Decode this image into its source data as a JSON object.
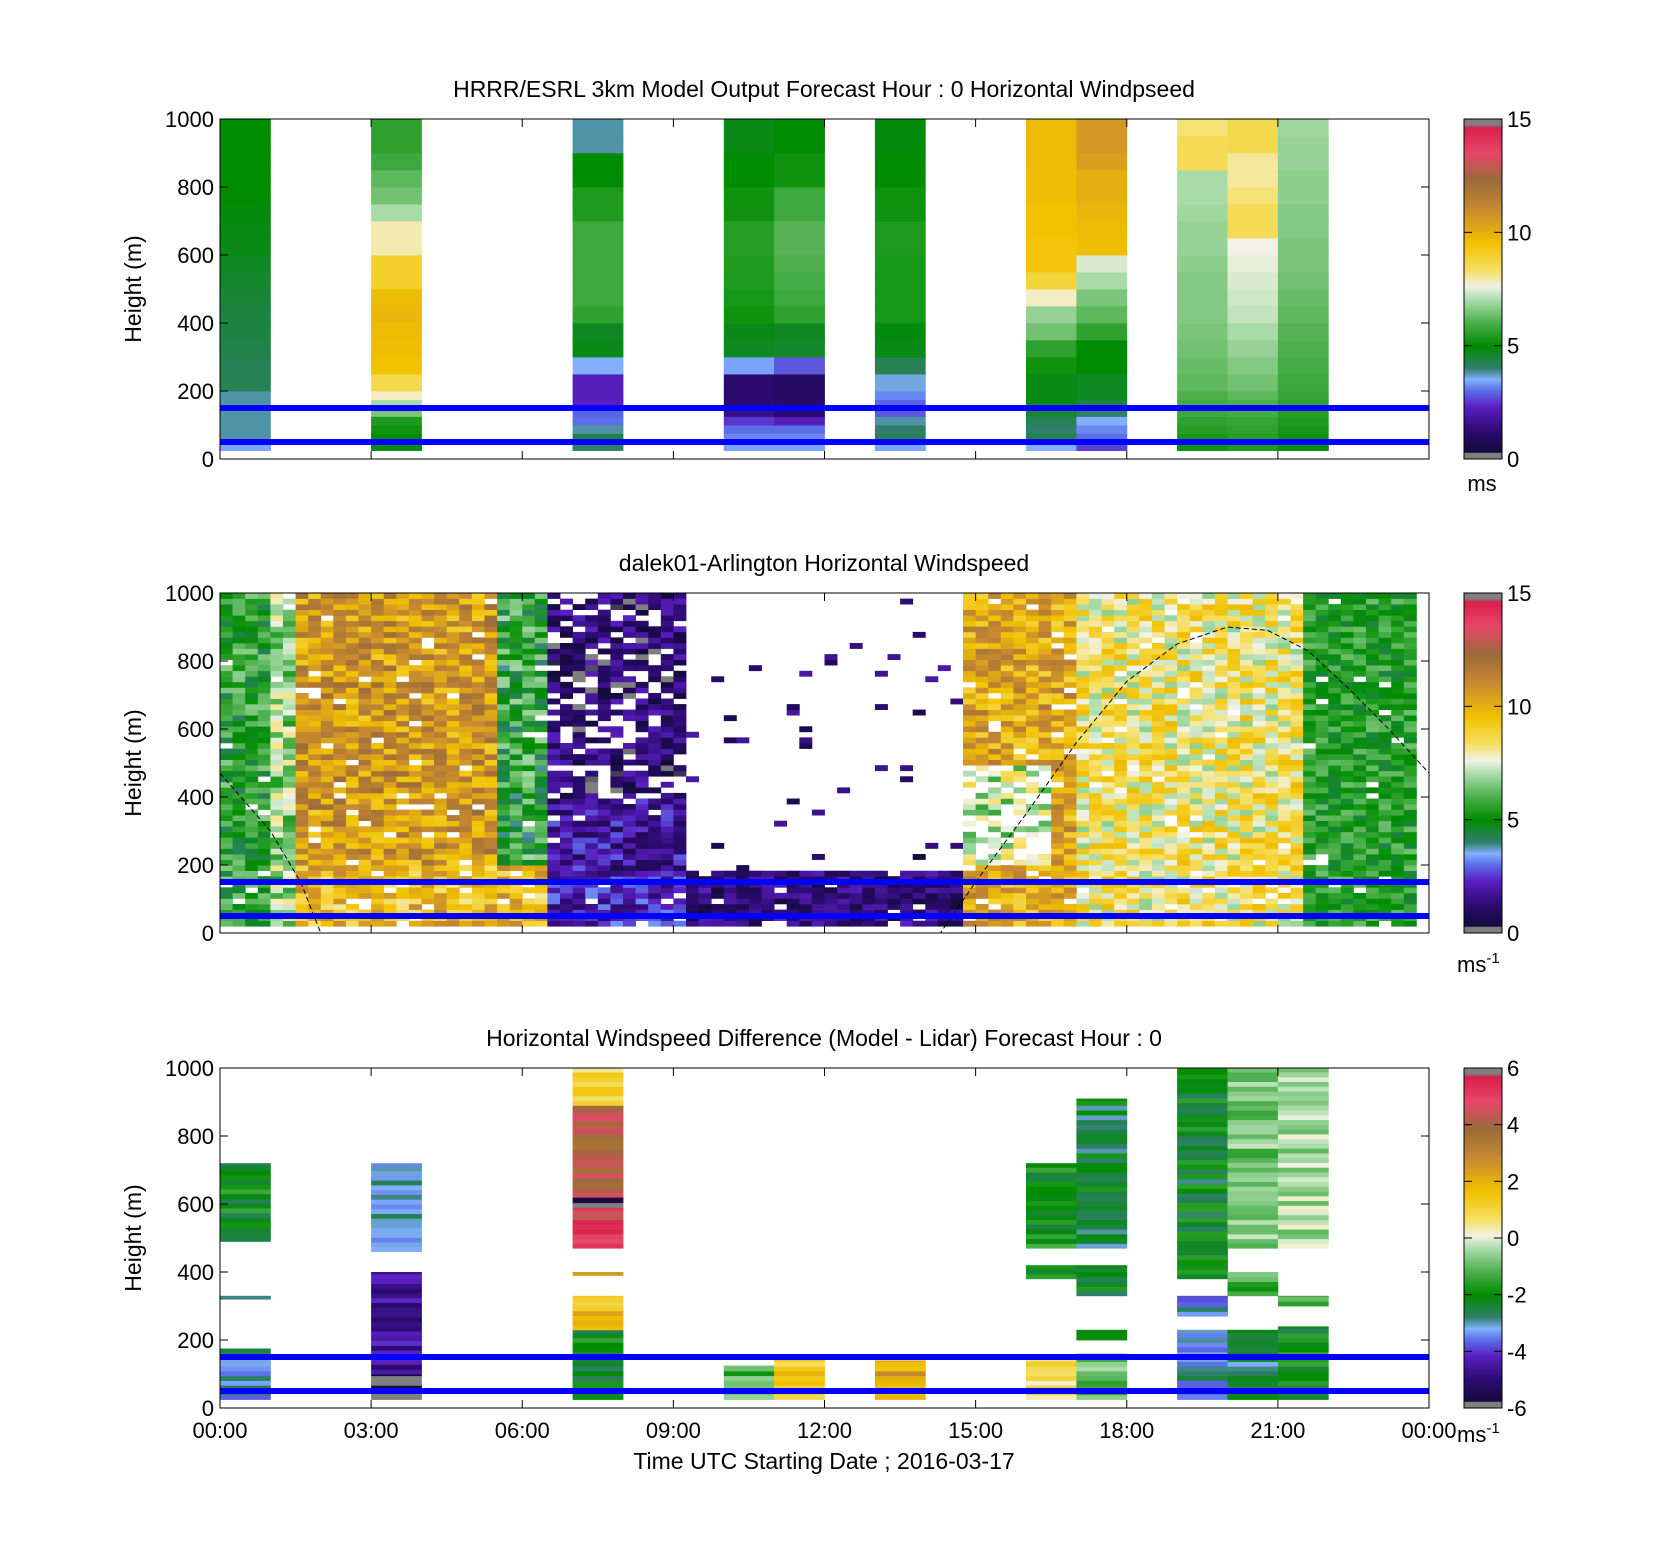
{
  "chart_data": [
    {
      "type": "heatmap",
      "title": "HRRR/ESRL 3km Model Output   Forecast Hour : 0 Horizontal Windpseed",
      "ylabel": "Height (m)",
      "xlim_hours": [
        0,
        24
      ],
      "ylim": [
        0,
        1000
      ],
      "yticks": [
        "0",
        "200",
        "400",
        "600",
        "800",
        "1000"
      ],
      "xticks": [
        "00:00",
        "03:00",
        "06:00",
        "09:00",
        "12:00",
        "15:00",
        "18:00",
        "21:00",
        "00:00"
      ],
      "colorbar": {
        "ticks": [
          "0",
          "5",
          "10",
          "15"
        ],
        "range": [
          0,
          15
        ],
        "unit": "ms"
      },
      "reference_lines_m": [
        50,
        150
      ],
      "height_levels_m": [
        25,
        50,
        75,
        100,
        125,
        150,
        175,
        200,
        250,
        300,
        350,
        400,
        450,
        500,
        550,
        600,
        650,
        700,
        750,
        800,
        850,
        900,
        950,
        1000
      ],
      "columns": [
        {
          "hour": 0.5,
          "speeds": [
            3,
            3.4,
            3.8,
            3.8,
            3.8,
            3.8,
            3.8,
            3.8,
            4.2,
            4.2,
            4.3,
            4.4,
            4.4,
            4.5,
            4.6,
            4.7,
            4.8,
            4.8,
            4.9,
            5.0,
            5.0,
            5.0,
            5.0,
            5.0
          ]
        },
        {
          "hour": 3.5,
          "speeds": [
            3.5,
            4.8,
            5.0,
            5.2,
            5.4,
            6.5,
            7.0,
            7.8,
            8.6,
            9.5,
            9.6,
            9.7,
            9.8,
            9.7,
            9.0,
            9.0,
            7.9,
            7.9,
            7.0,
            6.4,
            6.2,
            5.8,
            5.6,
            5.6
          ]
        },
        {
          "hour": 7.5,
          "speeds": [
            3.4,
            4.0,
            4.4,
            3.8,
            3.0,
            2.9,
            2.3,
            2.2,
            2.2,
            3.5,
            4.8,
            4.7,
            5.6,
            5.8,
            5.8,
            5.8,
            5.8,
            5.8,
            5.4,
            5.4,
            5.0,
            5.0,
            3.8,
            3.8
          ]
        },
        {
          "hour": 10.5,
          "speeds": [
            3.5,
            3.4,
            3.2,
            3.0,
            2.5,
            1.5,
            1.2,
            1.2,
            1.2,
            3.4,
            4.7,
            4.8,
            5.2,
            5.3,
            5.4,
            5.4,
            5.5,
            5.5,
            5.2,
            5.2,
            5.0,
            5.0,
            4.8,
            4.8
          ]
        },
        {
          "hour": 11.5,
          "speeds": [
            3.5,
            3.4,
            3.2,
            3.0,
            2.2,
            1.2,
            1.0,
            1.0,
            1.0,
            2.8,
            4.6,
            4.7,
            5.6,
            5.8,
            5.9,
            6.0,
            6.1,
            6.1,
            5.8,
            5.8,
            5.2,
            5.2,
            5.0,
            5.0
          ]
        },
        {
          "hour": 13.5,
          "speeds": [
            3.5,
            3.4,
            4.2,
            4.0,
            3.8,
            2.8,
            2.9,
            3.2,
            3.6,
            4.2,
            4.8,
            4.9,
            5.3,
            5.3,
            5.3,
            5.3,
            5.4,
            5.4,
            5.2,
            5.2,
            5.0,
            5.0,
            4.9,
            4.9
          ]
        },
        {
          "hour": 16.5,
          "speeds": [
            3.4,
            3.5,
            4.3,
            4.0,
            4.2,
            4.5,
            4.8,
            4.8,
            4.8,
            5.2,
            5.6,
            6.4,
            6.8,
            7.8,
            8.8,
            9.4,
            9.4,
            9.5,
            9.5,
            9.6,
            9.6,
            9.7,
            9.7,
            9.7
          ]
        },
        {
          "hour": 17.5,
          "speeds": [
            2.0,
            2.6,
            3.0,
            3.2,
            3.5,
            4.0,
            4.4,
            4.7,
            4.7,
            5.0,
            5.0,
            5.6,
            6.2,
            6.5,
            7.0,
            7.4,
            9.6,
            9.7,
            9.8,
            10.0,
            10.0,
            10.4,
            10.6,
            10.6
          ]
        },
        {
          "hour": 19.5,
          "speeds": [
            5.0,
            5.2,
            5.3,
            5.5,
            5.6,
            5.8,
            5.9,
            6.0,
            6.2,
            6.3,
            6.4,
            6.5,
            6.6,
            6.6,
            6.6,
            6.7,
            6.8,
            6.8,
            6.9,
            7.0,
            7.0,
            8.5,
            8.5,
            8.2
          ]
        },
        {
          "hour": 20.5,
          "speeds": [
            5.2,
            5.4,
            5.5,
            5.6,
            5.7,
            5.9,
            6.0,
            6.2,
            6.4,
            6.6,
            6.8,
            7.0,
            7.2,
            7.3,
            7.4,
            7.5,
            7.6,
            8.5,
            8.5,
            8.2,
            8.0,
            8.0,
            8.6,
            8.6
          ]
        },
        {
          "hour": 21.5,
          "speeds": [
            5.0,
            5.1,
            5.2,
            5.3,
            5.4,
            5.5,
            5.6,
            5.7,
            5.8,
            5.9,
            6.0,
            6.1,
            6.2,
            6.3,
            6.4,
            6.5,
            6.5,
            6.6,
            6.6,
            6.7,
            6.7,
            6.8,
            6.8,
            6.9
          ]
        }
      ]
    },
    {
      "type": "heatmap",
      "title": "dalek01-Arlington  Horizontal Windspeed",
      "ylabel": "Height (m)",
      "xlim_hours": [
        0,
        24
      ],
      "ylim": [
        0,
        1000
      ],
      "yticks": [
        "0",
        "200",
        "400",
        "600",
        "800",
        "1000"
      ],
      "colorbar": {
        "ticks": [
          "0",
          "5",
          "10",
          "15"
        ],
        "range": [
          0,
          15
        ],
        "unit": "ms",
        "unit_exp": "-1"
      },
      "reference_lines_m": [
        50,
        150
      ],
      "dashed_curve": "boundary-layer-height",
      "dashed_curve_points": [
        [
          0,
          470
        ],
        [
          1.0,
          300
        ],
        [
          1.6,
          150
        ],
        [
          2.0,
          0
        ],
        [
          14.3,
          0
        ],
        [
          15.0,
          150
        ],
        [
          16.0,
          350
        ],
        [
          17.0,
          560
        ],
        [
          18.0,
          740
        ],
        [
          19.0,
          850
        ],
        [
          20.0,
          900
        ],
        [
          20.8,
          890
        ],
        [
          21.6,
          830
        ],
        [
          22.4,
          720
        ],
        [
          23.2,
          600
        ],
        [
          24.0,
          470
        ]
      ],
      "regimes": [
        {
          "from_hour": 0.0,
          "to_hour": 1.1,
          "speed": 5.4,
          "spread": 1.3
        },
        {
          "from_hour": 1.1,
          "to_hour": 1.6,
          "speed": 6.8,
          "spread": 1.4
        },
        {
          "from_hour": 1.6,
          "to_hour": 5.4,
          "speed": 10.6,
          "spread": 1.6
        },
        {
          "from_hour": 5.4,
          "to_hour": 6.5,
          "speed": 5.4,
          "spread": 1.6
        },
        {
          "from_hour": 6.5,
          "to_hour": 9.3,
          "speed": 1.8,
          "spread": 1.1
        },
        {
          "from_hour": 9.3,
          "to_hour": 14.7,
          "speed": 1.2,
          "spread": 0.8
        },
        {
          "from_hour": 14.7,
          "to_hour": 17.1,
          "speed": 10.2,
          "spread": 1.5
        },
        {
          "from_hour": 17.1,
          "to_hour": 21.5,
          "speed": 8.2,
          "spread": 1.5
        },
        {
          "from_hour": 21.5,
          "to_hour": 23.8,
          "speed": 5.4,
          "spread": 1.0
        }
      ]
    },
    {
      "type": "heatmap",
      "title": "Horizontal Windspeed Difference (Model - Lidar) Forecast Hour : 0",
      "ylabel": "Height (m)",
      "xlabel": "Time UTC  Starting Date ; 2016-03-17",
      "xlim_hours": [
        0,
        24
      ],
      "ylim": [
        0,
        1000
      ],
      "yticks": [
        "0",
        "200",
        "400",
        "600",
        "800",
        "1000"
      ],
      "xticks": [
        "00:00",
        "03:00",
        "06:00",
        "09:00",
        "12:00",
        "15:00",
        "18:00",
        "21:00",
        "00:00"
      ],
      "colorbar": {
        "ticks": [
          "6",
          "4",
          "2",
          "0",
          "-2",
          "-4",
          "-6"
        ],
        "range": [
          -6,
          6
        ],
        "unit": "ms",
        "unit_exp": "-1"
      },
      "reference_lines_m": [
        50,
        150
      ],
      "columns": [
        {
          "hour": 0.5,
          "segments": [
            [
              25,
              175,
              -3.0
            ],
            [
              320,
              330,
              -3.0
            ],
            [
              490,
              720,
              -2.0
            ]
          ]
        },
        {
          "hour": 3.5,
          "segments": [
            [
              25,
              100,
              -6.0
            ],
            [
              100,
              400,
              -4.6
            ],
            [
              460,
              720,
              -3.2
            ]
          ]
        },
        {
          "hour": 7.5,
          "segments": [
            [
              25,
              230,
              -2.2
            ],
            [
              230,
              330,
              1.6
            ],
            [
              390,
              400,
              3.0
            ],
            [
              470,
              590,
              5.0
            ],
            [
              590,
              620,
              -6.0
            ],
            [
              620,
              890,
              4.2
            ],
            [
              890,
              1000,
              0.8
            ]
          ]
        },
        {
          "hour": 10.5,
          "segments": [
            [
              25,
              125,
              -1.2
            ]
          ]
        },
        {
          "hour": 11.5,
          "segments": [
            [
              25,
              150,
              1.2
            ]
          ]
        },
        {
          "hour": 13.5,
          "segments": [
            [
              25,
              140,
              2.2
            ]
          ]
        },
        {
          "hour": 16.5,
          "segments": [
            [
              25,
              150,
              0.8
            ],
            [
              380,
              420,
              -2.0
            ],
            [
              470,
              720,
              -1.8
            ]
          ]
        },
        {
          "hour": 17.5,
          "segments": [
            [
              25,
              160,
              -1.0
            ],
            [
              200,
              230,
              -2.2
            ],
            [
              330,
              420,
              -2.2
            ],
            [
              470,
              910,
              -2.4
            ]
          ]
        },
        {
          "hour": 19.5,
          "segments": [
            [
              25,
              230,
              -3.0
            ],
            [
              270,
              330,
              -3.2
            ],
            [
              380,
              1000,
              -2.2
            ]
          ]
        },
        {
          "hour": 20.5,
          "segments": [
            [
              25,
              230,
              -2.6
            ],
            [
              330,
              400,
              -1.4
            ],
            [
              470,
              1000,
              -0.8
            ]
          ]
        },
        {
          "hour": 21.5,
          "segments": [
            [
              25,
              240,
              -2.0
            ],
            [
              300,
              330,
              -1.4
            ],
            [
              470,
              1000,
              -0.4
            ]
          ]
        }
      ]
    }
  ]
}
